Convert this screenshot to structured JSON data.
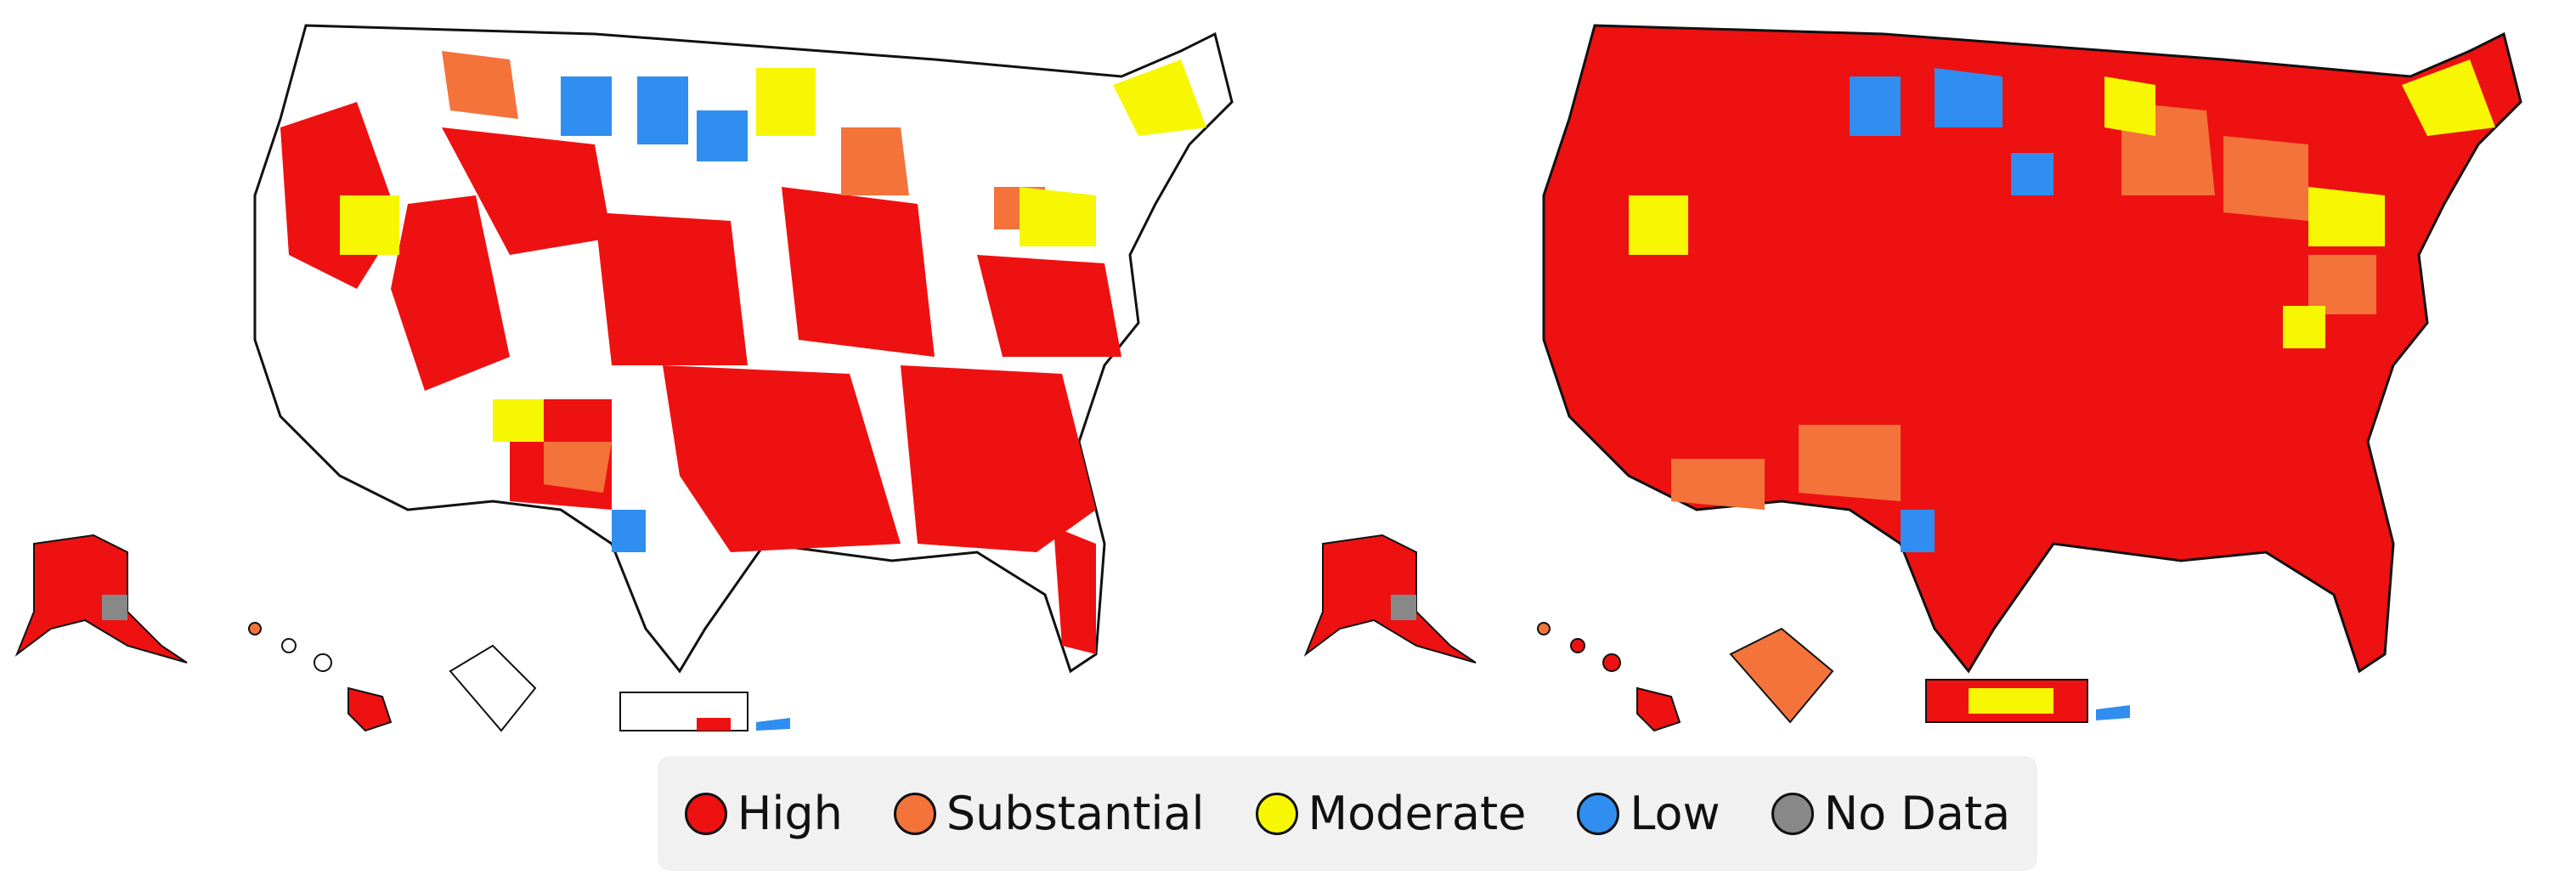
{
  "legend": {
    "items": [
      {
        "label": "High",
        "color": "#ee1111"
      },
      {
        "label": "Substantial",
        "color": "#f4733a"
      },
      {
        "label": "Moderate",
        "color": "#f7f703"
      },
      {
        "label": "Low",
        "color": "#2f8ef0"
      },
      {
        "label": "No Data",
        "color": "#888888"
      }
    ]
  },
  "maps": [
    {
      "id": "left",
      "region_fill": "mixed",
      "background_fill": "#ffffff"
    },
    {
      "id": "right",
      "region_fill": "mixed",
      "background_fill": "#ee1111"
    }
  ],
  "colors": {
    "border": "#111111",
    "white": "#ffffff"
  }
}
